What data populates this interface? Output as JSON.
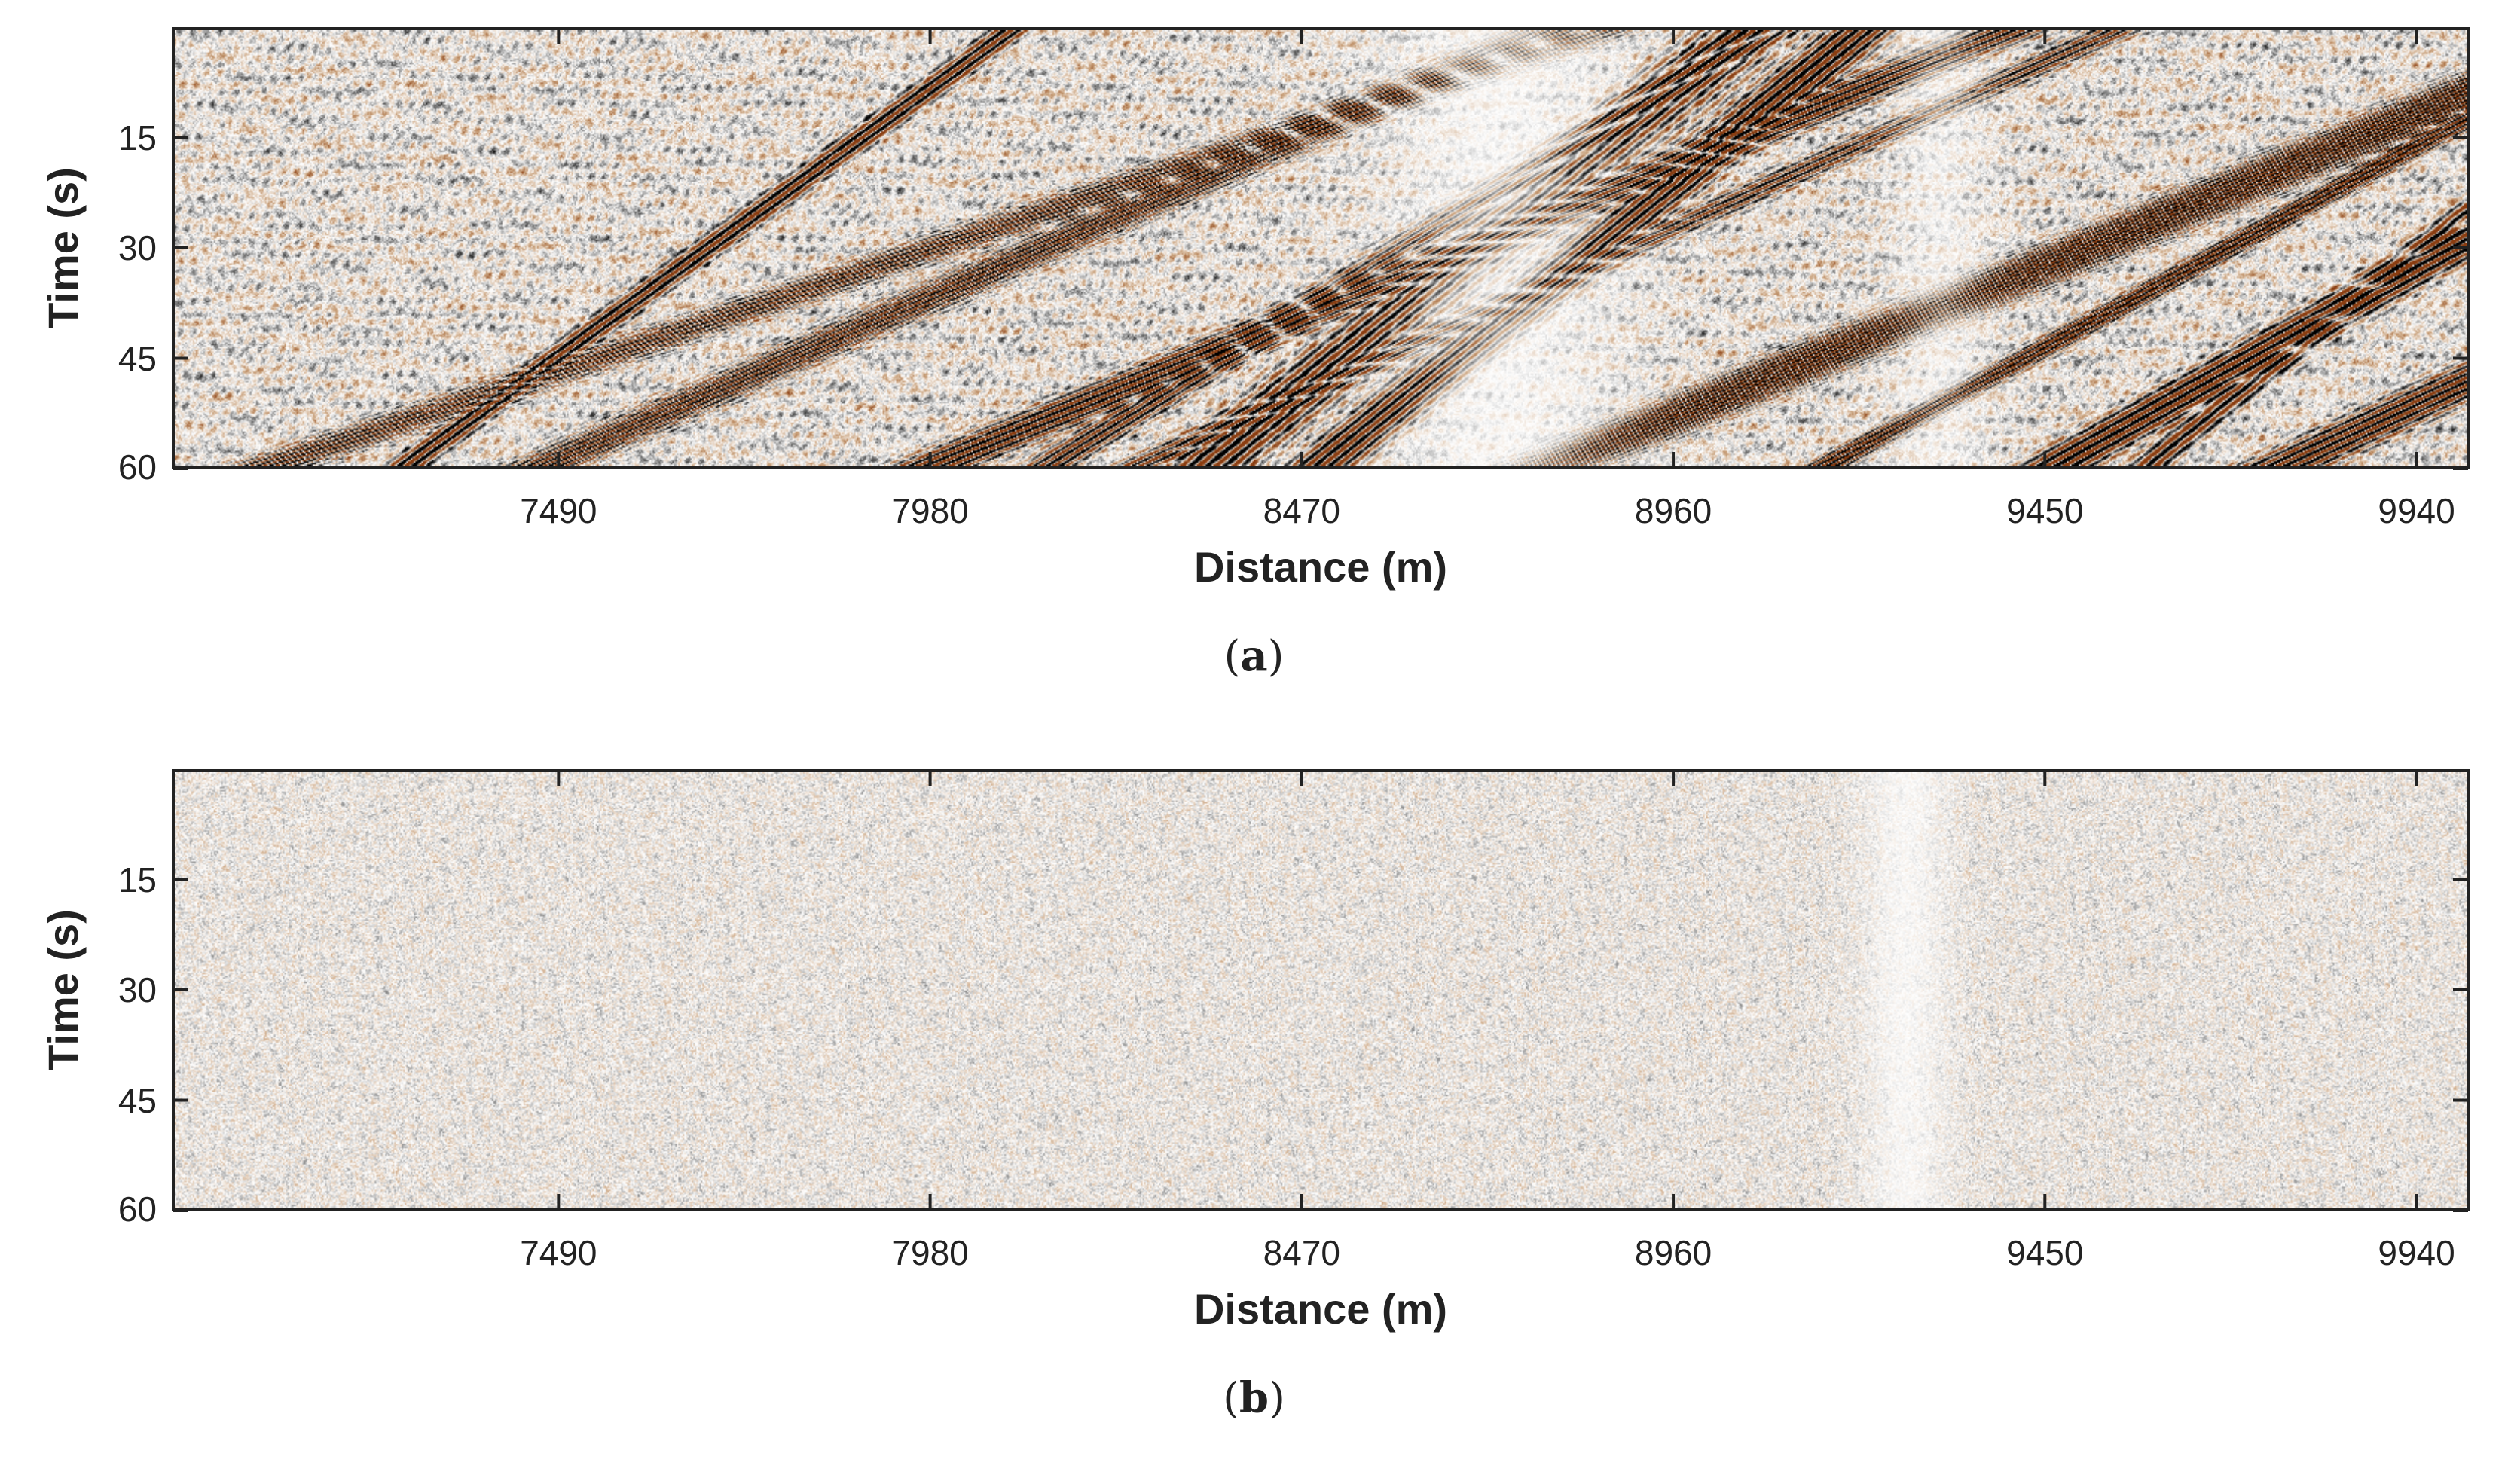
{
  "chart_data": [
    {
      "type": "heatmap",
      "panel_label": "a",
      "xlabel": "Distance (m)",
      "ylabel": "Time (s)",
      "xlim": [
        6980,
        10010
      ],
      "ylim": [
        60,
        0
      ],
      "xticks": [
        7490,
        7980,
        8470,
        8960,
        9450,
        9940
      ],
      "yticks": [
        15,
        30,
        45,
        60
      ],
      "colormap": [
        "#000000",
        "#808080",
        "#ffffff",
        "#c8a07a",
        "#8a3c10"
      ],
      "content": "high-amplitude coherent seismic noise with dipping linear events",
      "amplitude": 1.0
    },
    {
      "type": "heatmap",
      "panel_label": "b",
      "xlabel": "Distance (m)",
      "ylabel": "Time (s)",
      "xlim": [
        6980,
        10010
      ],
      "ylim": [
        60,
        0
      ],
      "xticks": [
        7490,
        7980,
        8470,
        8960,
        9450,
        9940
      ],
      "yticks": [
        15,
        30,
        45,
        60
      ],
      "colormap": [
        "#000000",
        "#808080",
        "#ffffff",
        "#c8a07a",
        "#8a3c10"
      ],
      "content": "low-amplitude residual random noise",
      "amplitude": 0.3
    }
  ],
  "panels": [
    {
      "caption_open": "(",
      "caption_letter": "a",
      "caption_close": ")",
      "xlabel": "Distance (m)",
      "ylabel": "Time (s)",
      "xtick_labels": [
        "7490",
        "7980",
        "8470",
        "8960",
        "9450",
        "9940"
      ],
      "ytick_labels": [
        "15",
        "30",
        "45",
        "60"
      ]
    },
    {
      "caption_open": "(",
      "caption_letter": "b",
      "caption_close": ")",
      "xlabel": "Distance (m)",
      "ylabel": "Time (s)",
      "xtick_labels": [
        "7490",
        "7980",
        "8470",
        "8960",
        "9450",
        "9940"
      ],
      "ytick_labels": [
        "15",
        "30",
        "45",
        "60"
      ]
    }
  ]
}
